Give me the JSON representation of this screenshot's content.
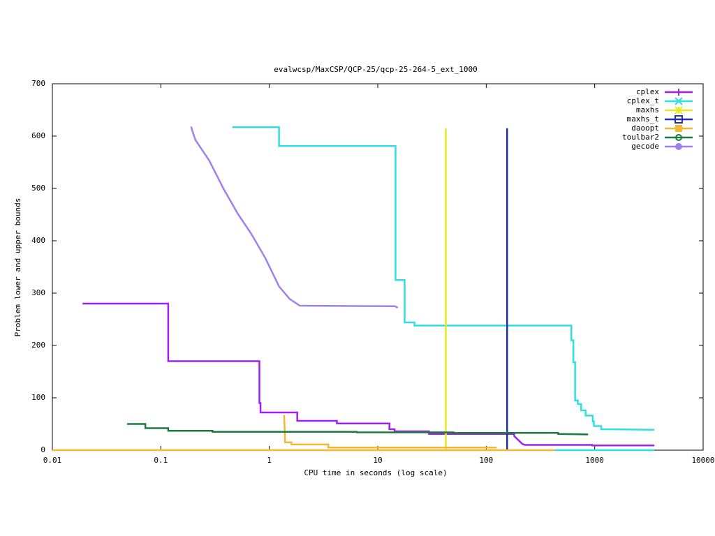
{
  "chart_data": {
    "type": "line",
    "title": "evalwcsp/MaxCSP/QCP-25/qcp-25-264-5_ext_1000",
    "xlabel": "CPU time in seconds (log scale)",
    "ylabel": "Problem lower and upper bounds",
    "xlog": true,
    "xlim": [
      0.01,
      10000
    ],
    "xticks": [
      0.01,
      0.1,
      1,
      10,
      100,
      1000,
      10000
    ],
    "ylim": [
      0,
      700
    ],
    "yticks": [
      0,
      100,
      200,
      300,
      400,
      500,
      600,
      700
    ],
    "legend": "top-right",
    "series": [
      {
        "name": "cplex",
        "color": "#a020f0",
        "marker": "plus",
        "x": [
          0.019,
          0.117,
          0.117,
          0.81,
          0.81,
          0.83,
          0.83,
          1.81,
          1.81,
          4.2,
          4.2,
          12.8,
          12.8,
          14.3,
          14.3,
          29.7,
          29.7,
          181,
          181,
          215,
          228,
          950,
          950,
          3550
        ],
        "values": [
          280,
          280,
          170,
          170,
          90,
          90,
          72,
          72,
          56,
          56,
          51,
          51,
          40,
          40,
          36,
          36,
          31,
          31,
          27,
          12,
          10,
          10,
          9,
          9
        ]
      },
      {
        "name": "cplex_t",
        "color": "#30e0e0",
        "marker": "cross",
        "x": [
          0.456,
          1.23,
          1.23,
          14.6,
          14.6,
          17.7,
          17.7,
          21.8,
          21.8,
          610,
          610,
          637,
          637,
          660,
          660,
          700,
          700,
          750,
          750,
          825,
          825,
          960,
          960,
          985,
          985,
          1150,
          1150,
          3550,
          null,
          427,
          3550
        ],
        "values": [
          617,
          617,
          581,
          581,
          325,
          325,
          244,
          244,
          238,
          238,
          210,
          210,
          168,
          168,
          95,
          95,
          88,
          88,
          76,
          76,
          66,
          66,
          55,
          55,
          46,
          46,
          40,
          39,
          null,
          0,
          0
        ]
      },
      {
        "name": "maxhs",
        "color": "#e8e820",
        "marker": "star",
        "x": [
          42.4,
          42.4
        ],
        "values": [
          615,
          0
        ]
      },
      {
        "name": "maxhs_t",
        "color": "#2030b0",
        "marker": "box",
        "x": [
          156,
          156
        ],
        "values": [
          615,
          0
        ]
      },
      {
        "name": "daoopt",
        "color": "#f5b82e",
        "marker": "filled-box",
        "x": [
          0.01,
          427,
          null,
          1.37,
          1.4,
          1.6,
          1.6,
          3.5,
          3.5,
          125
        ],
        "values": [
          0,
          0,
          null,
          67,
          15,
          15,
          11,
          11,
          5,
          5
        ]
      },
      {
        "name": "toulbar2",
        "color": "#1a7a40",
        "marker": "circle",
        "x": [
          0.0487,
          0.072,
          0.072,
          0.117,
          0.117,
          0.3,
          0.3,
          6.4,
          6.4,
          50,
          50,
          460,
          460,
          870
        ],
        "values": [
          50,
          50,
          42,
          42,
          37,
          37,
          35,
          35,
          34,
          34,
          33,
          33,
          31,
          30
        ]
      },
      {
        "name": "gecode",
        "color": "#a080f0",
        "marker": "filled-circle",
        "x": [
          0.19,
          0.208,
          0.28,
          0.377,
          0.508,
          0.684,
          0.92,
          1.23,
          1.54,
          1.91,
          14.4,
          15.3
        ],
        "values": [
          618,
          593,
          553,
          500,
          453,
          413,
          367,
          313,
          289,
          276,
          275,
          272
        ]
      }
    ]
  }
}
